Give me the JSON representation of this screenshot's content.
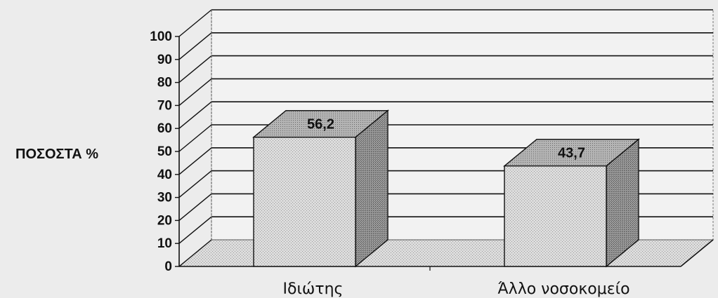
{
  "chart_data": {
    "type": "bar",
    "categories": [
      "Ιδιώτης",
      "Άλλο νοσοκομείο"
    ],
    "values": [
      56.2,
      43.7
    ],
    "value_labels": [
      "56,2",
      "43,7"
    ],
    "ylabel": "ΠΟΣΟΣΤΑ %",
    "ylim": [
      0,
      100
    ],
    "yticks": [
      0,
      10,
      20,
      30,
      40,
      50,
      60,
      70,
      80,
      90,
      100
    ],
    "grid": true,
    "style": "3d",
    "colors": {
      "bar_front": "#d6d6d6",
      "bar_top": "#a8a8a8",
      "bar_side": "#8c8c8c",
      "floor": "#b9b9b9",
      "wall": "#f2f2f2"
    }
  }
}
